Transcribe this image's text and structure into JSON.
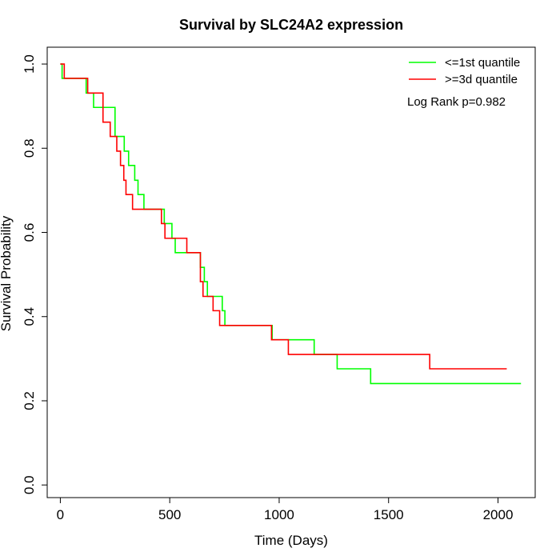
{
  "chart_data": {
    "type": "line",
    "title": "Survival by SLC24A2 expression",
    "xlabel": "Time (Days)",
    "ylabel": "Survival Probability",
    "xlim": [
      -60,
      2170
    ],
    "ylim": [
      -0.03,
      1.04
    ],
    "x_ticks": [
      0,
      500,
      1000,
      1500,
      2000
    ],
    "y_ticks": [
      0.0,
      0.2,
      0.4,
      0.6,
      0.8,
      1.0
    ],
    "x_tick_labels": [
      "0",
      "500",
      "1000",
      "1500",
      "2000"
    ],
    "y_tick_labels": [
      "0.0",
      "0.2",
      "0.4",
      "0.6",
      "0.8",
      "1.0"
    ],
    "grid": false,
    "legend_position": "top-right",
    "annotation": "Log Rank p=0.982",
    "series": [
      {
        "name": "<=1st quantile",
        "color": "#00ff00",
        "step": true,
        "x": [
          0,
          8,
          118,
          152,
          250,
          292,
          312,
          340,
          355,
          382,
          475,
          510,
          525,
          600,
          640,
          658,
          672,
          700,
          740,
          752,
          968,
          980,
          1160,
          1265,
          1418,
          2105
        ],
        "y": [
          1.0,
          0.966,
          0.931,
          0.897,
          0.828,
          0.793,
          0.759,
          0.724,
          0.69,
          0.655,
          0.621,
          0.586,
          0.552,
          0.552,
          0.517,
          0.483,
          0.448,
          0.448,
          0.414,
          0.379,
          0.345,
          0.345,
          0.31,
          0.276,
          0.241,
          0.241
        ]
      },
      {
        "name": ">=3d quantile",
        "color": "#ff0000",
        "step": true,
        "x": [
          0,
          18,
          125,
          195,
          228,
          258,
          275,
          290,
          300,
          330,
          462,
          478,
          578,
          640,
          652,
          698,
          728,
          965,
          1042,
          1688,
          2040
        ],
        "y": [
          1.0,
          0.966,
          0.931,
          0.862,
          0.828,
          0.793,
          0.759,
          0.724,
          0.69,
          0.655,
          0.621,
          0.586,
          0.552,
          0.483,
          0.448,
          0.414,
          0.379,
          0.345,
          0.31,
          0.276,
          0.276
        ]
      }
    ]
  }
}
